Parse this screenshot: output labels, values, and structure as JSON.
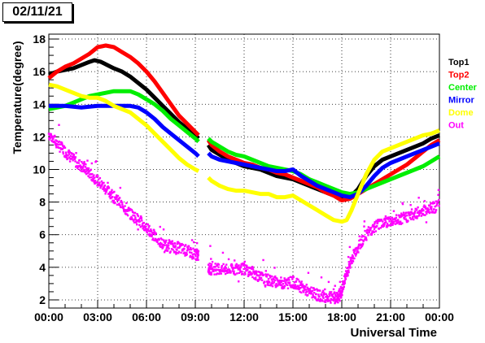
{
  "date_label": "02/11/21",
  "chart_data": {
    "type": "line",
    "title": "",
    "xlabel": "Universal Time",
    "ylabel": "Temperature(degree)",
    "xlim": [
      0,
      24
    ],
    "ylim": [
      1.5,
      18.3
    ],
    "x_ticks": [
      {
        "x": 0,
        "label": "00:00"
      },
      {
        "x": 3,
        "label": "03:00"
      },
      {
        "x": 6,
        "label": "06:00"
      },
      {
        "x": 9,
        "label": "09:00"
      },
      {
        "x": 12,
        "label": "12:00"
      },
      {
        "x": 15,
        "label": "15:00"
      },
      {
        "x": 18,
        "label": "18:00"
      },
      {
        "x": 21,
        "label": "21:00"
      },
      {
        "x": 24,
        "label": "00:00"
      }
    ],
    "y_ticks": [
      2,
      4,
      6,
      8,
      10,
      12,
      14,
      16,
      18
    ],
    "grid": true,
    "legend_position": "right",
    "series": [
      {
        "name": "Top1",
        "color": "#000000",
        "points": [
          [
            0,
            15.8
          ],
          [
            0.5,
            16.0
          ],
          [
            1,
            16.1
          ],
          [
            1.5,
            16.2
          ],
          [
            2,
            16.4
          ],
          [
            2.5,
            16.6
          ],
          [
            2.8,
            16.7
          ],
          [
            3.2,
            16.6
          ],
          [
            3.6,
            16.4
          ],
          [
            4,
            16.2
          ],
          [
            4.5,
            16.0
          ],
          [
            5,
            15.7
          ],
          [
            5.5,
            15.3
          ],
          [
            6,
            14.9
          ],
          [
            6.5,
            14.4
          ],
          [
            7,
            13.9
          ],
          [
            7.5,
            13.4
          ],
          [
            8,
            12.9
          ],
          [
            8.5,
            12.5
          ],
          [
            9,
            12.1
          ],
          [
            9.2,
            11.9
          ],
          null,
          [
            9.8,
            11.5
          ],
          [
            10,
            11.2
          ],
          [
            10.5,
            10.9
          ],
          [
            11,
            10.6
          ],
          [
            11.5,
            10.4
          ],
          [
            12,
            10.2
          ],
          [
            12.5,
            10.1
          ],
          [
            13,
            10.0
          ],
          [
            13.5,
            9.8
          ],
          [
            14,
            9.6
          ],
          [
            14.5,
            9.5
          ],
          [
            15,
            9.4
          ],
          [
            15.5,
            9.2
          ],
          [
            16,
            9.0
          ],
          [
            16.5,
            8.8
          ],
          [
            17,
            8.6
          ],
          [
            17.5,
            8.4
          ],
          [
            18,
            8.2
          ],
          [
            18.5,
            8.3
          ],
          [
            19,
            8.8
          ],
          [
            19.5,
            9.6
          ],
          [
            20,
            10.2
          ],
          [
            20.5,
            10.6
          ],
          [
            21,
            10.8
          ],
          [
            21.5,
            11.0
          ],
          [
            22,
            11.2
          ],
          [
            22.5,
            11.4
          ],
          [
            23,
            11.6
          ],
          [
            23.5,
            11.9
          ],
          [
            24,
            12.1
          ]
        ]
      },
      {
        "name": "Top2",
        "color": "#ff0000",
        "points": [
          [
            0,
            15.6
          ],
          [
            0.5,
            16.0
          ],
          [
            1,
            16.3
          ],
          [
            1.5,
            16.5
          ],
          [
            2,
            16.8
          ],
          [
            2.5,
            17.1
          ],
          [
            3,
            17.5
          ],
          [
            3.5,
            17.6
          ],
          [
            4,
            17.5
          ],
          [
            4.5,
            17.2
          ],
          [
            5,
            16.9
          ],
          [
            5.5,
            16.5
          ],
          [
            6,
            16.0
          ],
          [
            6.5,
            15.4
          ],
          [
            7,
            14.7
          ],
          [
            7.5,
            14.0
          ],
          [
            8,
            13.3
          ],
          [
            8.5,
            12.8
          ],
          [
            9,
            12.3
          ],
          [
            9.2,
            12.1
          ],
          null,
          [
            9.8,
            11.8
          ],
          [
            10,
            11.5
          ],
          [
            10.5,
            11.1
          ],
          [
            11,
            10.8
          ],
          [
            11.5,
            10.6
          ],
          [
            12,
            10.4
          ],
          [
            12.5,
            10.3
          ],
          [
            13,
            10.1
          ],
          [
            13.5,
            10.0
          ],
          [
            14,
            9.8
          ],
          [
            14.5,
            9.7
          ],
          [
            15,
            9.5
          ],
          [
            15.5,
            9.3
          ],
          [
            16,
            9.1
          ],
          [
            16.5,
            8.9
          ],
          [
            17,
            8.6
          ],
          [
            17.5,
            8.4
          ],
          [
            18,
            8.1
          ],
          [
            18.5,
            8.2
          ],
          [
            19,
            8.5
          ],
          [
            19.5,
            8.8
          ],
          [
            20,
            9.1
          ],
          [
            20.5,
            9.4
          ],
          [
            21,
            9.7
          ],
          [
            21.5,
            10.0
          ],
          [
            22,
            10.3
          ],
          [
            22.5,
            10.7
          ],
          [
            23,
            11.1
          ],
          [
            23.5,
            11.5
          ],
          [
            24,
            11.8
          ]
        ]
      },
      {
        "name": "Center",
        "color": "#00ee00",
        "points": [
          [
            0,
            13.7
          ],
          [
            0.5,
            13.8
          ],
          [
            1,
            13.9
          ],
          [
            1.5,
            14.1
          ],
          [
            2,
            14.3
          ],
          [
            2.5,
            14.5
          ],
          [
            3,
            14.6
          ],
          [
            3.5,
            14.7
          ],
          [
            4,
            14.8
          ],
          [
            4.5,
            14.8
          ],
          [
            5,
            14.8
          ],
          [
            5.5,
            14.6
          ],
          [
            6,
            14.3
          ],
          [
            6.5,
            14.0
          ],
          [
            7,
            13.6
          ],
          [
            7.5,
            13.1
          ],
          [
            8,
            12.7
          ],
          [
            8.5,
            12.3
          ],
          [
            9,
            11.9
          ],
          [
            9.2,
            11.7
          ],
          null,
          [
            9.8,
            11.9
          ],
          [
            10,
            11.7
          ],
          [
            10.5,
            11.4
          ],
          [
            11,
            11.1
          ],
          [
            11.5,
            10.9
          ],
          [
            12,
            10.8
          ],
          [
            12.5,
            10.6
          ],
          [
            13,
            10.4
          ],
          [
            13.5,
            10.2
          ],
          [
            14,
            10.1
          ],
          [
            14.5,
            10.0
          ],
          [
            15,
            9.9
          ],
          [
            15.5,
            9.7
          ],
          [
            16,
            9.4
          ],
          [
            16.5,
            9.2
          ],
          [
            17,
            9.0
          ],
          [
            17.5,
            8.8
          ],
          [
            18,
            8.6
          ],
          [
            18.5,
            8.5
          ],
          [
            19,
            8.6
          ],
          [
            19.5,
            8.8
          ],
          [
            20,
            9.0
          ],
          [
            20.5,
            9.2
          ],
          [
            21,
            9.4
          ],
          [
            21.5,
            9.6
          ],
          [
            22,
            9.8
          ],
          [
            22.5,
            10.0
          ],
          [
            23,
            10.2
          ],
          [
            23.5,
            10.5
          ],
          [
            24,
            10.8
          ]
        ]
      },
      {
        "name": "Mirror",
        "color": "#0000ff",
        "points": [
          [
            0,
            13.9
          ],
          [
            0.5,
            13.9
          ],
          [
            1,
            13.9
          ],
          [
            1.5,
            13.85
          ],
          [
            2,
            13.8
          ],
          [
            2.5,
            13.85
          ],
          [
            3,
            13.9
          ],
          [
            3.5,
            13.9
          ],
          [
            4,
            13.9
          ],
          [
            4.5,
            13.9
          ],
          [
            5,
            13.9
          ],
          [
            5.5,
            13.8
          ],
          [
            6,
            13.5
          ],
          [
            6.5,
            13.1
          ],
          [
            7,
            12.6
          ],
          [
            7.5,
            12.2
          ],
          [
            8,
            11.8
          ],
          [
            8.5,
            11.4
          ],
          [
            9,
            11.0
          ],
          [
            9.2,
            10.8
          ],
          null,
          [
            9.8,
            11.0
          ],
          [
            10,
            10.8
          ],
          [
            10.5,
            10.6
          ],
          [
            11,
            10.5
          ],
          [
            11.5,
            10.4
          ],
          [
            12,
            10.3
          ],
          [
            12.5,
            10.2
          ],
          [
            13,
            10.1
          ],
          [
            13.5,
            10.0
          ],
          [
            14,
            9.9
          ],
          [
            14.5,
            9.9
          ],
          [
            15,
            10.0
          ],
          [
            15.5,
            9.6
          ],
          [
            16,
            9.3
          ],
          [
            16.5,
            9.0
          ],
          [
            17,
            8.8
          ],
          [
            17.5,
            8.6
          ],
          [
            18,
            8.4
          ],
          [
            18.5,
            8.3
          ],
          [
            19,
            8.5
          ],
          [
            19.5,
            9.0
          ],
          [
            20,
            9.6
          ],
          [
            20.5,
            10.1
          ],
          [
            21,
            10.4
          ],
          [
            21.5,
            10.6
          ],
          [
            22,
            10.8
          ],
          [
            22.5,
            11.0
          ],
          [
            23,
            11.2
          ],
          [
            23.5,
            11.4
          ],
          [
            24,
            11.6
          ]
        ]
      },
      {
        "name": "Dome",
        "color": "#ffff00",
        "points": [
          [
            0,
            15.2
          ],
          [
            0.5,
            15.1
          ],
          [
            1,
            14.9
          ],
          [
            1.5,
            14.7
          ],
          [
            2,
            14.5
          ],
          [
            2.5,
            14.4
          ],
          [
            3,
            14.4
          ],
          [
            3.5,
            14.2
          ],
          [
            4,
            13.9
          ],
          [
            4.5,
            13.7
          ],
          [
            5,
            13.5
          ],
          [
            5.5,
            13.1
          ],
          [
            6,
            12.7
          ],
          [
            6.5,
            12.2
          ],
          [
            7,
            11.7
          ],
          [
            7.5,
            11.2
          ],
          [
            8,
            10.7
          ],
          [
            8.5,
            10.3
          ],
          [
            9,
            10.0
          ],
          [
            9.2,
            9.9
          ],
          null,
          [
            9.8,
            9.5
          ],
          [
            10,
            9.3
          ],
          [
            10.5,
            9.0
          ],
          [
            11,
            8.8
          ],
          [
            11.5,
            8.7
          ],
          [
            12,
            8.7
          ],
          [
            12.5,
            8.6
          ],
          [
            13,
            8.5
          ],
          [
            13.5,
            8.5
          ],
          [
            14,
            8.3
          ],
          [
            14.5,
            8.3
          ],
          [
            15,
            8.4
          ],
          [
            15.5,
            8.1
          ],
          [
            16,
            7.8
          ],
          [
            16.5,
            7.5
          ],
          [
            17,
            7.2
          ],
          [
            17.5,
            6.9
          ],
          [
            18,
            6.8
          ],
          [
            18.3,
            6.9
          ],
          [
            18.6,
            7.5
          ],
          [
            19,
            8.5
          ],
          [
            19.5,
            9.7
          ],
          [
            20,
            10.6
          ],
          [
            20.5,
            11.1
          ],
          [
            21,
            11.3
          ],
          [
            21.5,
            11.5
          ],
          [
            22,
            11.7
          ],
          [
            22.5,
            11.9
          ],
          [
            23,
            12.1
          ],
          [
            23.5,
            12.2
          ],
          [
            24,
            12.4
          ]
        ]
      }
    ],
    "out_series": {
      "name": "Out",
      "color": "#ff00ff",
      "trend": [
        [
          0,
          12.2
        ],
        [
          0.5,
          11.6
        ],
        [
          1,
          11.1
        ],
        [
          1.5,
          10.6
        ],
        [
          2,
          10.2
        ],
        [
          2.5,
          9.8
        ],
        [
          3,
          9.3
        ],
        [
          3.5,
          8.8
        ],
        [
          4,
          8.3
        ],
        [
          4.5,
          7.8
        ],
        [
          5,
          7.3
        ],
        [
          5.5,
          6.9
        ],
        [
          6,
          6.4
        ],
        [
          6.5,
          5.9
        ],
        [
          7,
          5.4
        ],
        [
          7.5,
          5.3
        ],
        [
          8,
          5.2
        ],
        [
          8.5,
          5.0
        ],
        [
          9,
          4.8
        ],
        [
          9.2,
          4.7
        ],
        null,
        [
          9.8,
          3.9
        ],
        [
          10,
          3.9
        ],
        [
          10.5,
          3.9
        ],
        [
          11,
          3.8
        ],
        [
          11.5,
          3.9
        ],
        [
          12,
          3.9
        ],
        [
          12.5,
          3.7
        ],
        [
          13,
          3.4
        ],
        [
          13.5,
          3.2
        ],
        [
          14,
          3.1
        ],
        [
          14.5,
          3.0
        ],
        [
          15,
          3.1
        ],
        [
          15.5,
          2.8
        ],
        [
          16,
          2.5
        ],
        [
          16.5,
          2.3
        ],
        [
          17,
          2.2
        ],
        [
          17.5,
          2.1
        ],
        [
          17.8,
          2.2
        ],
        [
          18,
          2.6
        ],
        [
          18.3,
          3.6
        ],
        [
          18.6,
          4.5
        ],
        [
          19,
          5.3
        ],
        [
          19.5,
          6.0
        ],
        [
          20,
          6.5
        ],
        [
          20.5,
          6.8
        ],
        [
          21,
          6.8
        ],
        [
          21.5,
          6.9
        ],
        [
          22,
          7.1
        ],
        [
          22.5,
          7.3
        ],
        [
          23,
          7.5
        ],
        [
          23.5,
          7.6
        ],
        [
          24,
          7.8
        ]
      ]
    }
  }
}
